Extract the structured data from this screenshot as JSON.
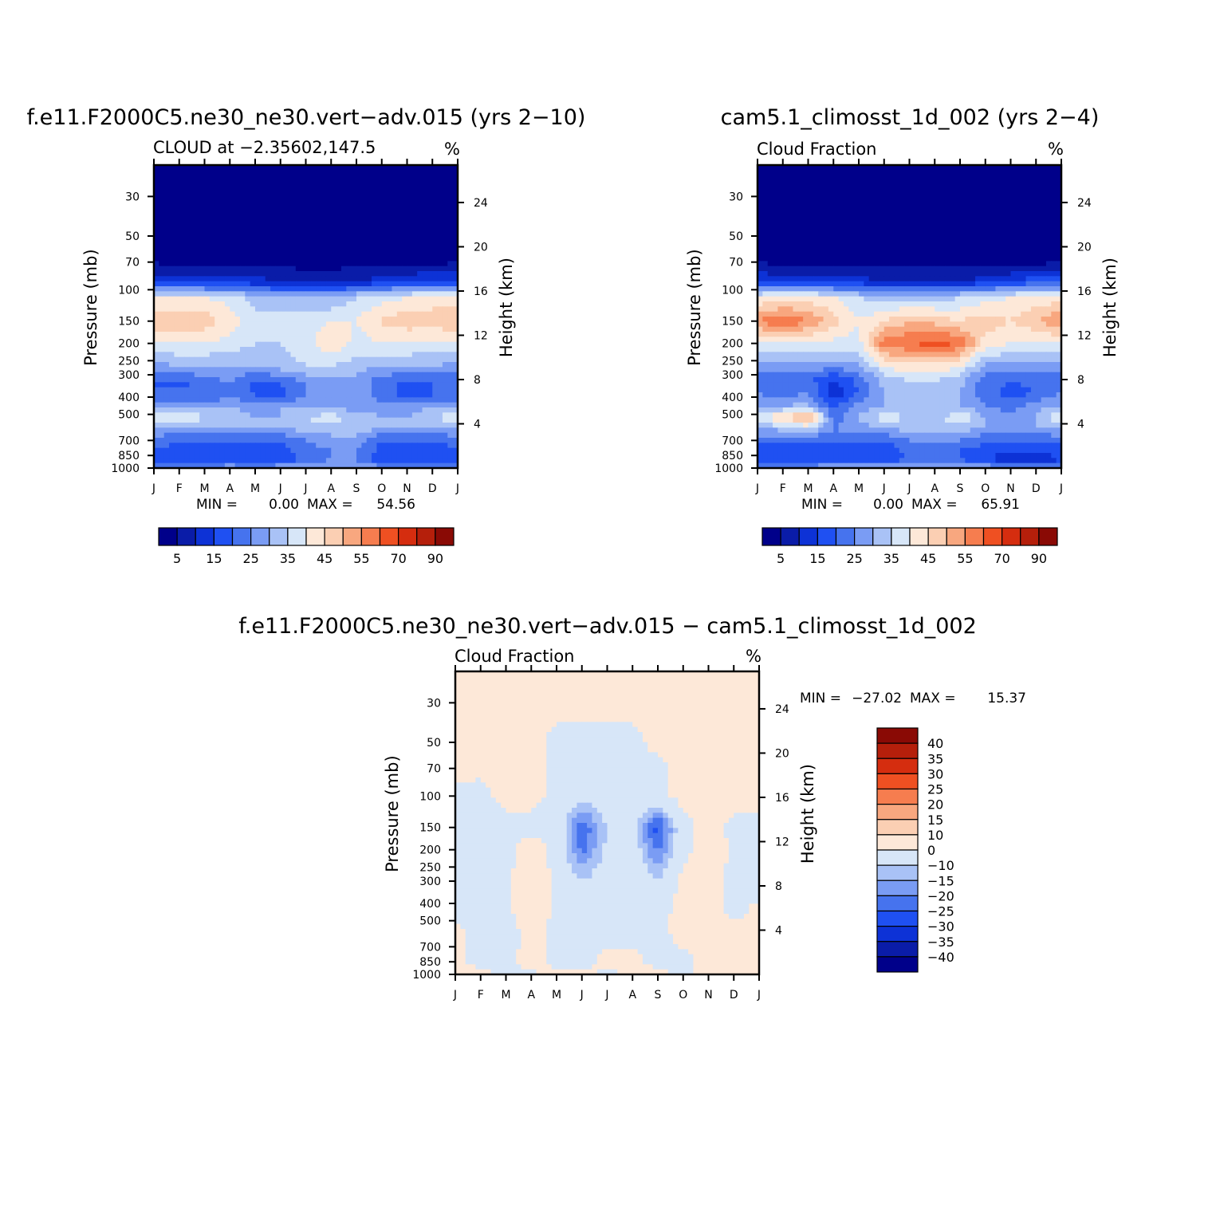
{
  "chart_data": [
    {
      "type": "contour",
      "title": "f.e11.F2000C5.ne30_ne30.vert-adv.015 (yrs 2-10)",
      "subtitle": "CLOUD at -2.35602,147.5",
      "units": "%",
      "ylabel": "Pressure (mb)",
      "y2label": "Height (km)",
      "x_ticks": [
        "J",
        "F",
        "M",
        "A",
        "M",
        "J",
        "J",
        "A",
        "S",
        "O",
        "N",
        "D",
        "J"
      ],
      "p_ticks": [
        "30",
        "50",
        "70",
        "100",
        "150",
        "200",
        "250",
        "300",
        "400",
        "500",
        "700",
        "850",
        "1000"
      ],
      "p_values": [
        30,
        50,
        70,
        100,
        150,
        200,
        250,
        300,
        400,
        500,
        700,
        850,
        1000
      ],
      "h_ticks": [
        "24",
        "20",
        "16",
        "12",
        "8",
        "4"
      ],
      "h_values": [
        24,
        20,
        16,
        12,
        8,
        4
      ],
      "min_label": "MIN =",
      "min": "0.00",
      "max_label": "MAX =",
      "max": "54.56",
      "colorbar_labels": [
        "5",
        "15",
        "25",
        "35",
        "45",
        "55",
        "70",
        "90"
      ],
      "layers": [
        {
          "p": 1000,
          "v": [
            28,
            25,
            28,
            30,
            28,
            30,
            30,
            30,
            30,
            28,
            28,
            28,
            28
          ]
        },
        {
          "p": 900,
          "v": [
            18,
            15,
            15,
            15,
            15,
            15,
            22,
            25,
            25,
            15,
            15,
            15,
            18
          ]
        },
        {
          "p": 800,
          "v": [
            20,
            18,
            18,
            18,
            18,
            18,
            22,
            25,
            25,
            18,
            15,
            15,
            20
          ]
        },
        {
          "p": 700,
          "v": [
            22,
            20,
            20,
            20,
            20,
            20,
            25,
            28,
            28,
            20,
            20,
            20,
            22
          ]
        },
        {
          "p": 600,
          "v": [
            30,
            30,
            30,
            30,
            30,
            30,
            32,
            33,
            33,
            30,
            30,
            30,
            30
          ]
        },
        {
          "p": 520,
          "v": [
            42,
            38,
            36,
            32,
            30,
            30,
            35,
            38,
            32,
            30,
            30,
            32,
            42
          ]
        },
        {
          "p": 450,
          "v": [
            30,
            30,
            30,
            30,
            28,
            30,
            30,
            28,
            28,
            28,
            28,
            30,
            30
          ]
        },
        {
          "p": 400,
          "v": [
            20,
            22,
            20,
            25,
            20,
            18,
            25,
            28,
            28,
            22,
            18,
            20,
            20
          ]
        },
        {
          "p": 330,
          "v": [
            20,
            18,
            22,
            25,
            18,
            20,
            25,
            28,
            28,
            22,
            18,
            20,
            20
          ]
        },
        {
          "p": 270,
          "v": [
            28,
            30,
            30,
            30,
            30,
            32,
            35,
            35,
            32,
            30,
            30,
            30,
            28
          ]
        },
        {
          "p": 200,
          "v": [
            40,
            40,
            40,
            38,
            35,
            35,
            38,
            45,
            38,
            40,
            40,
            38,
            40
          ]
        },
        {
          "p": 150,
          "v": [
            48,
            50,
            48,
            42,
            38,
            38,
            38,
            40,
            40,
            46,
            48,
            48,
            50
          ]
        },
        {
          "p": 110,
          "v": [
            40,
            40,
            40,
            38,
            32,
            30,
            30,
            30,
            35,
            38,
            40,
            42,
            42
          ]
        },
        {
          "p": 90,
          "v": [
            12,
            12,
            12,
            12,
            12,
            10,
            8,
            8,
            10,
            12,
            14,
            16,
            16
          ]
        },
        {
          "p": 70,
          "v": [
            5,
            3,
            3,
            3,
            3,
            3,
            3,
            3,
            3,
            3,
            3,
            3,
            5
          ]
        },
        {
          "p": 30,
          "v": [
            2,
            2,
            2,
            2,
            2,
            2,
            2,
            2,
            2,
            2,
            2,
            2,
            2
          ]
        }
      ]
    },
    {
      "type": "contour",
      "title": "cam5.1_climosst_1d_002 (yrs 2-4)",
      "subtitle": "Cloud Fraction",
      "units": "%",
      "ylabel": "Pressure (mb)",
      "y2label": "Height (km)",
      "x_ticks": [
        "J",
        "F",
        "M",
        "A",
        "M",
        "J",
        "J",
        "A",
        "S",
        "O",
        "N",
        "D",
        "J"
      ],
      "p_ticks": [
        "30",
        "50",
        "70",
        "100",
        "150",
        "200",
        "250",
        "300",
        "400",
        "500",
        "700",
        "850",
        "1000"
      ],
      "p_values": [
        30,
        50,
        70,
        100,
        150,
        200,
        250,
        300,
        400,
        500,
        700,
        850,
        1000
      ],
      "h_ticks": [
        "24",
        "20",
        "16",
        "12",
        "8",
        "4"
      ],
      "h_values": [
        24,
        20,
        16,
        12,
        8,
        4
      ],
      "min_label": "MIN =",
      "min": "0.00",
      "max_label": "MAX =",
      "max": "65.91",
      "colorbar_labels": [
        "5",
        "15",
        "25",
        "35",
        "45",
        "55",
        "70",
        "90"
      ],
      "layers": [
        {
          "p": 1000,
          "v": [
            28,
            25,
            28,
            30,
            30,
            30,
            30,
            30,
            30,
            30,
            28,
            28,
            28
          ]
        },
        {
          "p": 900,
          "v": [
            15,
            15,
            15,
            18,
            15,
            15,
            22,
            20,
            20,
            15,
            12,
            10,
            15
          ]
        },
        {
          "p": 800,
          "v": [
            18,
            15,
            15,
            18,
            15,
            15,
            22,
            20,
            20,
            18,
            15,
            15,
            18
          ]
        },
        {
          "p": 700,
          "v": [
            22,
            20,
            20,
            20,
            20,
            20,
            25,
            25,
            25,
            20,
            20,
            20,
            22
          ]
        },
        {
          "p": 600,
          "v": [
            30,
            32,
            35,
            25,
            28,
            30,
            32,
            32,
            32,
            30,
            30,
            30,
            30
          ]
        },
        {
          "p": 520,
          "v": [
            40,
            45,
            55,
            22,
            30,
            38,
            35,
            32,
            40,
            30,
            28,
            30,
            40
          ]
        },
        {
          "p": 450,
          "v": [
            30,
            30,
            32,
            18,
            28,
            30,
            30,
            30,
            30,
            25,
            22,
            28,
            30
          ]
        },
        {
          "p": 380,
          "v": [
            25,
            22,
            25,
            10,
            20,
            30,
            33,
            33,
            30,
            22,
            18,
            20,
            25
          ]
        },
        {
          "p": 320,
          "v": [
            22,
            20,
            22,
            15,
            22,
            32,
            36,
            36,
            32,
            22,
            20,
            22,
            22
          ]
        },
        {
          "p": 260,
          "v": [
            30,
            30,
            30,
            28,
            30,
            42,
            45,
            45,
            42,
            30,
            30,
            30,
            30
          ]
        },
        {
          "p": 200,
          "v": [
            40,
            40,
            40,
            38,
            38,
            58,
            60,
            62,
            60,
            42,
            40,
            38,
            40
          ]
        },
        {
          "p": 150,
          "v": [
            55,
            60,
            55,
            48,
            40,
            45,
            50,
            48,
            45,
            48,
            45,
            50,
            55
          ]
        },
        {
          "p": 110,
          "v": [
            40,
            42,
            42,
            40,
            35,
            32,
            32,
            32,
            35,
            38,
            40,
            42,
            42
          ]
        },
        {
          "p": 90,
          "v": [
            15,
            12,
            12,
            12,
            12,
            10,
            10,
            10,
            10,
            12,
            15,
            18,
            18
          ]
        },
        {
          "p": 70,
          "v": [
            5,
            3,
            3,
            3,
            3,
            3,
            3,
            3,
            3,
            3,
            3,
            3,
            5
          ]
        },
        {
          "p": 30,
          "v": [
            2,
            2,
            2,
            2,
            2,
            2,
            2,
            2,
            2,
            2,
            2,
            2,
            2
          ]
        }
      ]
    },
    {
      "type": "contour",
      "title": "f.e11.F2000C5.ne30_ne30.vert-adv.015 - cam5.1_climosst_1d_002",
      "subtitle": "Cloud Fraction",
      "units": "%",
      "ylabel": "Pressure (mb)",
      "y2label": "Height (km)",
      "x_ticks": [
        "J",
        "F",
        "M",
        "A",
        "M",
        "J",
        "J",
        "A",
        "S",
        "O",
        "N",
        "D",
        "J"
      ],
      "p_ticks": [
        "30",
        "50",
        "70",
        "100",
        "150",
        "200",
        "250",
        "300",
        "400",
        "500",
        "700",
        "850",
        "1000"
      ],
      "p_values": [
        30,
        50,
        70,
        100,
        150,
        200,
        250,
        300,
        400,
        500,
        700,
        850,
        1000
      ],
      "h_ticks": [
        "24",
        "20",
        "16",
        "12",
        "8",
        "4"
      ],
      "h_values": [
        24,
        20,
        16,
        12,
        8,
        4
      ],
      "min_label": "MIN =",
      "min": "-27.02",
      "max_label": "MAX =",
      "max": "15.37",
      "colorbar_labels": [
        "40",
        "35",
        "30",
        "25",
        "20",
        "15",
        "10",
        "0",
        "-10",
        "-15",
        "-20",
        "-25",
        "-30",
        "-35",
        "-40"
      ],
      "layers": [
        {
          "p": 1000,
          "v": [
            2,
            2,
            -2,
            -2,
            3,
            3,
            -2,
            2,
            2,
            -2,
            2,
            2,
            2
          ]
        },
        {
          "p": 850,
          "v": [
            3,
            -3,
            -3,
            5,
            -3,
            -3,
            3,
            3,
            -3,
            -3,
            3,
            3,
            3
          ]
        },
        {
          "p": 600,
          "v": [
            2,
            -3,
            -8,
            5,
            -3,
            -8,
            -3,
            -3,
            -3,
            3,
            3,
            3,
            3
          ]
        },
        {
          "p": 450,
          "v": [
            -2,
            -3,
            -3,
            8,
            -3,
            -3,
            -3,
            -3,
            -3,
            3,
            3,
            -2,
            2
          ]
        },
        {
          "p": 300,
          "v": [
            -2,
            -3,
            -3,
            8,
            -3,
            -10,
            -5,
            -3,
            -10,
            3,
            3,
            -2,
            -3
          ]
        },
        {
          "p": 200,
          "v": [
            -2,
            -3,
            -3,
            5,
            -3,
            -22,
            -8,
            -5,
            -22,
            -3,
            6,
            -2,
            -8
          ]
        },
        {
          "p": 150,
          "v": [
            -2,
            -8,
            -3,
            -3,
            -3,
            -25,
            -10,
            -8,
            -28,
            -3,
            3,
            -2,
            -3
          ]
        },
        {
          "p": 100,
          "v": [
            -2,
            -3,
            3,
            3,
            -3,
            -8,
            -3,
            -3,
            -3,
            3,
            3,
            3,
            3
          ]
        },
        {
          "p": 70,
          "v": [
            2,
            2,
            2,
            2,
            -2,
            -2,
            -2,
            -2,
            -2,
            2,
            2,
            2,
            2
          ]
        },
        {
          "p": 50,
          "v": [
            2,
            2,
            2,
            2,
            -2,
            -2,
            -2,
            -2,
            2,
            2,
            2,
            2,
            2
          ]
        },
        {
          "p": 30,
          "v": [
            2,
            2,
            2,
            2,
            2,
            2,
            2,
            2,
            2,
            2,
            2,
            2,
            2
          ]
        }
      ]
    }
  ],
  "colors": {
    "cloud_scale": [
      "#00008a",
      "#0a1ca8",
      "#0d32d6",
      "#1f50f2",
      "#4673ee",
      "#7a9cf4",
      "#a9c2f6",
      "#d7e6f8",
      "#fde8d8",
      "#fbcfb3",
      "#f8a77f",
      "#f67d4f",
      "#ef5022",
      "#d52d0f",
      "#b51f0b",
      "#8a0a05"
    ],
    "diff_scale": [
      "#00008a",
      "#0a1ca8",
      "#0d32d6",
      "#1f50f2",
      "#4673ee",
      "#7a9cf4",
      "#a9c2f6",
      "#d7e6f8",
      "#fde8d8",
      "#fbcfb3",
      "#f8a77f",
      "#f67d4f",
      "#ef5022",
      "#d52d0f",
      "#b51f0b",
      "#8a0a05"
    ]
  }
}
